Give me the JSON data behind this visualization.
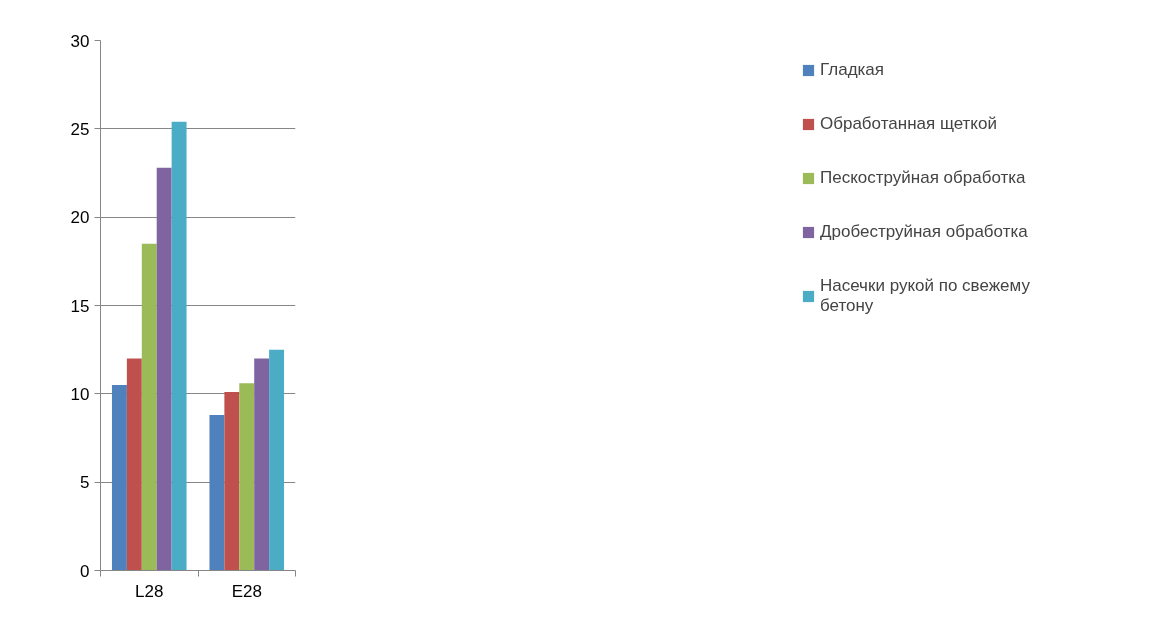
{
  "chart_data": {
    "type": "bar",
    "categories": [
      "L28",
      "E28"
    ],
    "series": [
      {
        "name": "Гладкая",
        "color": "#4f81bd",
        "values": [
          10.5,
          8.8
        ]
      },
      {
        "name": "Обработанная щеткой",
        "color": "#c0504d",
        "values": [
          12.0,
          10.1
        ]
      },
      {
        "name": "Пескоструйная обработка",
        "color": "#9bbb59",
        "values": [
          18.5,
          10.6
        ]
      },
      {
        "name": "Дробеструйная обработка",
        "color": "#8064a2",
        "values": [
          22.8,
          12.0
        ]
      },
      {
        "name": "Насечки рукой по свежему бетону",
        "color": "#4bacc6",
        "values": [
          25.4,
          12.5
        ]
      }
    ],
    "ylim": [
      0,
      30
    ],
    "yticks": [
      0,
      5,
      10,
      15,
      20,
      25,
      30
    ],
    "grid": "y",
    "legend": "right"
  }
}
